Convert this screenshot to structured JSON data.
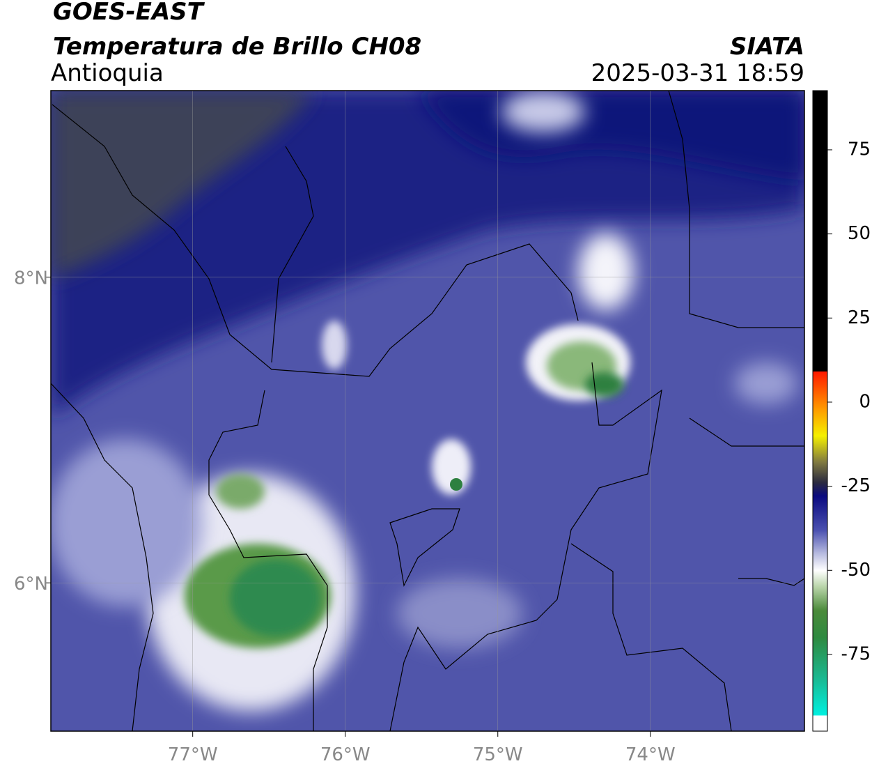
{
  "header": {
    "title": "GOES-EAST",
    "subtitle": "Temperatura de Brillo CH08",
    "region": "Antioquia",
    "source": "SIATA",
    "datetime": "2025-03-31 18:59"
  },
  "map": {
    "xlim": [
      -77.93,
      -72.99
    ],
    "ylim": [
      5.03,
      9.22
    ],
    "xticks": [
      {
        "value": -77,
        "label": "77°W"
      },
      {
        "value": -76,
        "label": "76°W"
      },
      {
        "value": -75,
        "label": "75°W"
      },
      {
        "value": -74,
        "label": "74°W"
      }
    ],
    "yticks": [
      {
        "value": 6,
        "label": "6°N"
      },
      {
        "value": 8,
        "label": "8°N"
      }
    ]
  },
  "colorbar": {
    "lim": [
      -97.8,
      92.6
    ],
    "ticks": [
      -75,
      -50,
      -25,
      0,
      25,
      50,
      75
    ]
  }
}
